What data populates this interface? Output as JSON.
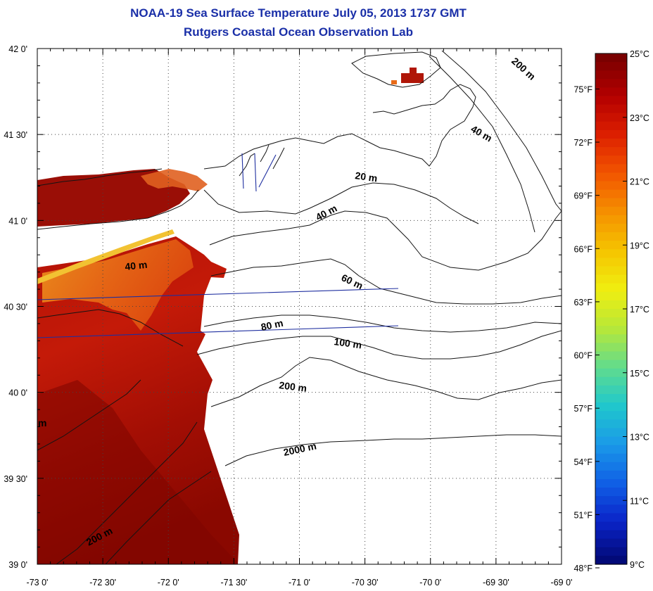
{
  "map": {
    "title": "NOAA-19 Sea Surface Temperature July 05, 2013 1737 GMT",
    "subtitle": "Rutgers Coastal Ocean Observation Lab",
    "lon_labels": [
      "-73 0'",
      "-72 30'",
      "-72 0'",
      "-71 30'",
      "-71 0'",
      "-70 30'",
      "-70 0'",
      "-69 30'",
      "-69 0'"
    ],
    "lat_labels": [
      "42 0'",
      "41 30'",
      "41 0'",
      "40 30'",
      "40 0'",
      "39 30'",
      "39 0'"
    ],
    "depth_labels": [
      {
        "text": "200 m",
        "region": "upper right, near Georges Bank",
        "angle": 42
      },
      {
        "text": "40 m",
        "region": "upper right",
        "angle": 30
      },
      {
        "text": "20 m",
        "region": "south of Rhode Island",
        "angle": 8
      },
      {
        "text": "40 m",
        "region": "south of Block Island",
        "angle": -28
      },
      {
        "text": "40 m",
        "region": "off Long Island",
        "angle": -6
      },
      {
        "text": "60 m",
        "region": "central shelf",
        "angle": 25
      },
      {
        "text": "80 m",
        "region": "central shelf",
        "angle": -12
      },
      {
        "text": "100 m",
        "region": "central shelf",
        "angle": 8
      },
      {
        "text": "200 m",
        "region": "shelf break",
        "angle": 7
      },
      {
        "text": "2000 m",
        "region": "slope",
        "angle": -12
      },
      {
        "text": "200 m",
        "region": "lower left",
        "angle": -28
      },
      {
        "text": "m",
        "region": "left edge",
        "angle": 0
      }
    ],
    "colors": {
      "title": "#1a2fa8",
      "track": "#1f2fa0",
      "coast": "#111111"
    }
  },
  "colorbar": {
    "celsius_labels": [
      "25°C",
      "23°C",
      "21°C",
      "19°C",
      "17°C",
      "15°C",
      "13°C",
      "11°C",
      "9°C"
    ],
    "fahrenheit_labels": [
      "75°F",
      "72°F",
      "69°F",
      "66°F",
      "63°F",
      "60°F",
      "57°F",
      "54°F",
      "51°F",
      "48°F"
    ],
    "celsius_range": [
      9,
      25
    ],
    "gradient_colors": [
      "#7a0000",
      "#b40000",
      "#dd2000",
      "#f25500",
      "#f59000",
      "#f5c400",
      "#f0ee10",
      "#b8e838",
      "#62dc8c",
      "#20c8cc",
      "#1a9ae8",
      "#1060e6",
      "#0a24c8",
      "#020a78"
    ]
  }
}
